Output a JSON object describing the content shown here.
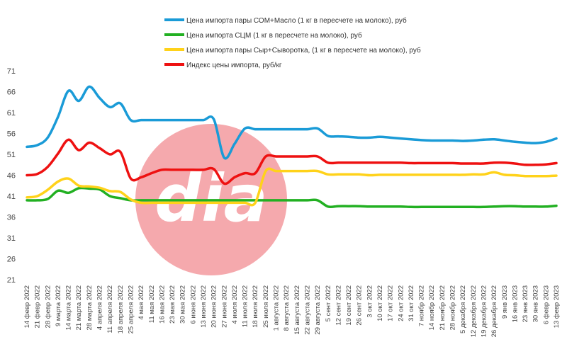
{
  "chart_data": {
    "type": "line",
    "ylim": [
      21,
      71
    ],
    "yticks": [
      21,
      26,
      31,
      36,
      41,
      46,
      51,
      56,
      61,
      66,
      71
    ],
    "grid": false,
    "legend_position": "top",
    "watermark": "dia",
    "x": [
      "14 февр 2022",
      "21 февр 2022",
      "28 февр 2022",
      "9 марта 2022",
      "14 марта 2022",
      "21 марта 2022",
      "28 марта 2022",
      "4 апреля 2022",
      "11 апреля 2022",
      "18 апреля 2022",
      "25 апреля 2022",
      "4 мая 2022",
      "11 мая 2022",
      "16 мая 2022",
      "23 мая 2022",
      "30 мая 2022",
      "6 июня 2022",
      "13 июня 2022",
      "20 июня 2022",
      "27 июня 2022",
      "4 июля 2022",
      "11 июля 2022",
      "18 июля 2022",
      "25 июля 2022",
      "1 августа 2022",
      "8 августа 2022",
      "15 августа 2022",
      "22 августа 2022",
      "29 августа 2022",
      "5 сент 2022",
      "12 сент 2022",
      "19 сент 2022",
      "26 сент 2022",
      "3 окт 2022",
      "10 окт 2022",
      "17 окт 2022",
      "24 окт 2022",
      "31 окт 2022",
      "7 ноябр 2022",
      "14 ноябр 2022",
      "21 ноябр 2022",
      "28 ноябр 2022",
      "5 декабря 2022",
      "12 декабря 2022",
      "19 декабря 2022",
      "26 декабря 2022",
      "9 янв 2023",
      "16 янв 2023",
      "23 янв 2023",
      "30 янв 2023",
      "6 февр 2023",
      "13 февр 2023"
    ],
    "series": [
      {
        "name": "Цена импорта пары СОМ+Масло  (1 кг в пересчете на молоко), руб",
        "color": "#1a9bd7",
        "values": [
          52.8,
          53.2,
          55,
          60,
          66.2,
          63.8,
          67.2,
          64.5,
          62.3,
          63.2,
          59.2,
          59.2,
          59.2,
          59.2,
          59.2,
          59.2,
          59.2,
          59.2,
          59.4,
          50.2,
          53.5,
          57.2,
          57,
          57,
          57,
          57,
          57,
          57,
          57.2,
          55.4,
          55.3,
          55.2,
          55,
          55,
          55.2,
          55,
          54.8,
          54.6,
          54.4,
          54.3,
          54.3,
          54.3,
          54.2,
          54.3,
          54.5,
          54.6,
          54.3,
          54,
          53.8,
          53.7,
          54,
          54.8
        ]
      },
      {
        "name": "Цена импорта СЦМ (1 кг в пересчете на молоко), руб",
        "color": "#22b022",
        "values": [
          40,
          40,
          40.3,
          42.3,
          41.8,
          42.9,
          42.8,
          42.6,
          41,
          40.5,
          40,
          40,
          40,
          40,
          40,
          40,
          40,
          40,
          40,
          40,
          40,
          40,
          40,
          40,
          40,
          40,
          40,
          40,
          40,
          38.5,
          38.6,
          38.6,
          38.6,
          38.5,
          38.5,
          38.5,
          38.5,
          38.4,
          38.4,
          38.4,
          38.4,
          38.4,
          38.4,
          38.4,
          38.4,
          38.5,
          38.6,
          38.6,
          38.5,
          38.5,
          38.5,
          38.7
        ]
      },
      {
        "name": "Цена импорта пары Сыр+Сыворотка, (1 кг в пересчете на молоко), руб",
        "color": "#ffd21a",
        "values": [
          40.7,
          41,
          42.5,
          44.5,
          45.2,
          43.5,
          43.3,
          43,
          42.2,
          42,
          40.2,
          39.4,
          39.4,
          39.4,
          39.4,
          39.4,
          39.4,
          39.4,
          39.4,
          39.4,
          39.4,
          39.4,
          39.4,
          47,
          47,
          47,
          47,
          47,
          47,
          46.2,
          46.2,
          46.2,
          46.2,
          46,
          46.1,
          46.1,
          46.1,
          46.1,
          46.1,
          46.1,
          46.1,
          46.1,
          46.1,
          46.2,
          46.2,
          46.7,
          46.1,
          46,
          45.8,
          45.8,
          45.8,
          45.9
        ]
      },
      {
        "name": "Индекс цены импорта, руб/кг",
        "color": "#ee1111",
        "values": [
          46,
          46.3,
          48,
          51.2,
          54.5,
          52,
          53.8,
          52.5,
          51,
          51.6,
          45.2,
          45.5,
          46.5,
          47.3,
          47.3,
          47.3,
          47.3,
          47.3,
          47.5,
          44,
          45.5,
          46.5,
          46.5,
          50.5,
          50.5,
          50.5,
          50.5,
          50.5,
          50.5,
          49,
          49,
          49,
          49,
          49,
          49,
          49,
          49,
          48.9,
          48.9,
          48.9,
          48.9,
          48.9,
          48.8,
          48.8,
          48.8,
          49,
          49,
          48.8,
          48.5,
          48.5,
          48.6,
          48.9
        ]
      }
    ]
  }
}
